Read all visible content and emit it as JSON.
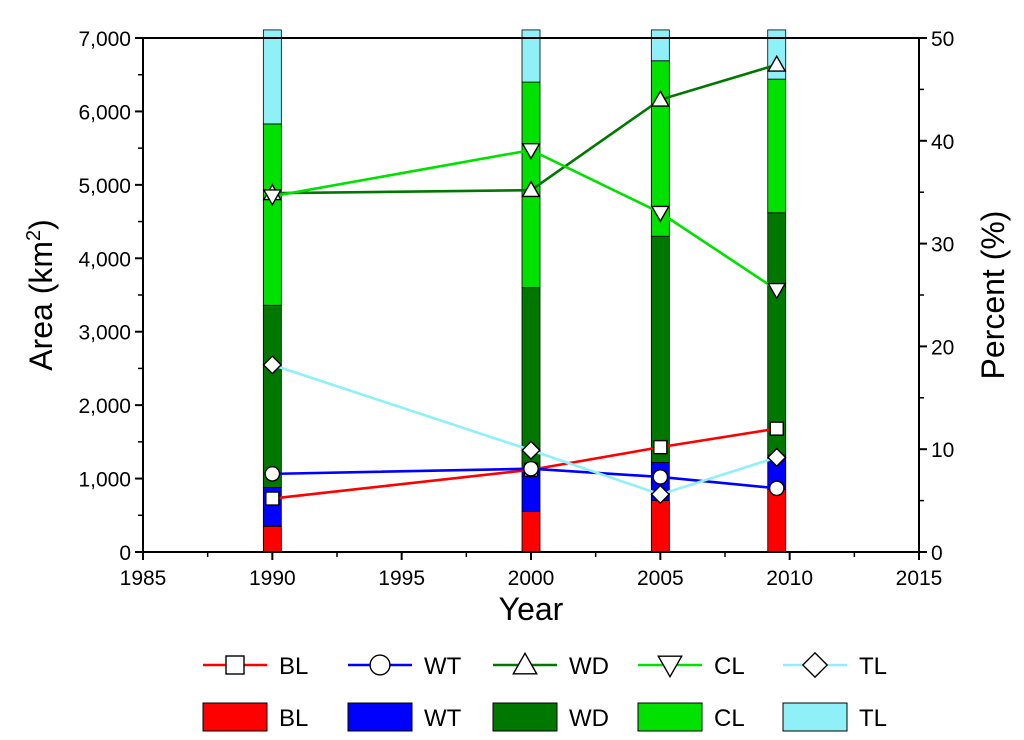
{
  "chart_data": {
    "type": "bar+line",
    "xlabel": "Year",
    "ylabel_left": "Area (km",
    "ylabel_left_sup": "2",
    "ylabel_left_close": ")",
    "ylabel_right": "Percent (%)",
    "xlim": [
      1985,
      2015
    ],
    "xticks": [
      1985,
      1990,
      1995,
      2000,
      2005,
      2010,
      2015
    ],
    "xtick_labels": [
      "1985",
      "1990",
      "1995",
      "2000",
      "2005",
      "2010",
      "2015"
    ],
    "ylim_left": [
      0,
      7000
    ],
    "yticks_left": [
      0,
      1000,
      2000,
      3000,
      4000,
      5000,
      6000,
      7000
    ],
    "ytick_labels_left": [
      "0",
      "1,000",
      "2,000",
      "3,000",
      "4,000",
      "5,000",
      "6,000",
      "7,000"
    ],
    "ylim_right": [
      0,
      50
    ],
    "yticks_right": [
      0,
      10,
      20,
      30,
      40,
      50
    ],
    "ytick_labels_right": [
      "0",
      "10",
      "20",
      "30",
      "40",
      "50"
    ],
    "bar_years": [
      1990,
      2000,
      2005,
      2009.5
    ],
    "bar_series": [
      {
        "name": "BL",
        "color": "#ff0000",
        "values": [
          350,
          550,
          700,
          850
        ]
      },
      {
        "name": "WT",
        "color": "#0000ff",
        "values": [
          530,
          580,
          520,
          470
        ]
      },
      {
        "name": "WD",
        "color": "#007800",
        "values": [
          2480,
          2470,
          3080,
          3300
        ]
      },
      {
        "name": "CL",
        "color": "#00e100",
        "values": [
          2470,
          2800,
          2390,
          1820
        ]
      },
      {
        "name": "TL",
        "color": "#8ff0f8",
        "values": [
          1280,
          710,
          420,
          670
        ]
      }
    ],
    "line_series": [
      {
        "name": "BL",
        "color": "#ff0000",
        "marker": "square",
        "values": [
          5.2,
          8.0,
          10.2,
          12.0
        ]
      },
      {
        "name": "WT",
        "color": "#0000ff",
        "marker": "circle",
        "values": [
          7.6,
          8.1,
          7.3,
          6.2
        ]
      },
      {
        "name": "WD",
        "color": "#007800",
        "marker": "triangle-up",
        "values": [
          34.9,
          35.2,
          44.0,
          47.4
        ]
      },
      {
        "name": "CL",
        "color": "#00e100",
        "marker": "triangle-down",
        "values": [
          34.6,
          39.1,
          33.0,
          25.5
        ]
      },
      {
        "name": "TL",
        "color": "#8ff0f8",
        "marker": "diamond",
        "values": [
          18.2,
          9.9,
          5.6,
          9.2
        ]
      }
    ]
  }
}
